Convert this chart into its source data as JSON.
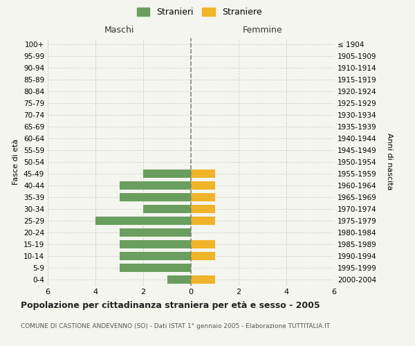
{
  "age_groups": [
    "0-4",
    "5-9",
    "10-14",
    "15-19",
    "20-24",
    "25-29",
    "30-34",
    "35-39",
    "40-44",
    "45-49",
    "50-54",
    "55-59",
    "60-64",
    "65-69",
    "70-74",
    "75-79",
    "80-84",
    "85-89",
    "90-94",
    "95-99",
    "100+"
  ],
  "birth_years": [
    "2000-2004",
    "1995-1999",
    "1990-1994",
    "1985-1989",
    "1980-1984",
    "1975-1979",
    "1970-1974",
    "1965-1969",
    "1960-1964",
    "1955-1959",
    "1950-1954",
    "1945-1949",
    "1940-1944",
    "1935-1939",
    "1930-1934",
    "1925-1929",
    "1920-1924",
    "1915-1919",
    "1910-1914",
    "1905-1909",
    "≤ 1904"
  ],
  "males": [
    1,
    3,
    3,
    3,
    3,
    4,
    2,
    3,
    3,
    2,
    0,
    0,
    0,
    0,
    0,
    0,
    0,
    0,
    0,
    0,
    0
  ],
  "females": [
    1,
    0,
    1,
    1,
    0,
    1,
    1,
    1,
    1,
    1,
    0,
    0,
    0,
    0,
    0,
    0,
    0,
    0,
    0,
    0,
    0
  ],
  "male_color": "#6a9e5e",
  "female_color": "#f0b429",
  "background_color": "#f5f5f0",
  "grid_color": "#cccccc",
  "centerline_color": "#888877",
  "title": "Popolazione per cittadinanza straniera per età e sesso - 2005",
  "subtitle": "COMUNE DI CASTIONE ANDEVENNO (SO) - Dati ISTAT 1° gennaio 2005 - Elaborazione TUTTITALIA.IT",
  "ylabel_left": "Fasce di età",
  "ylabel_right": "Anni di nascita",
  "legend_male": "Stranieri",
  "legend_female": "Straniere",
  "maschi_label": "Maschi",
  "femmine_label": "Femmine",
  "xlim": 6
}
